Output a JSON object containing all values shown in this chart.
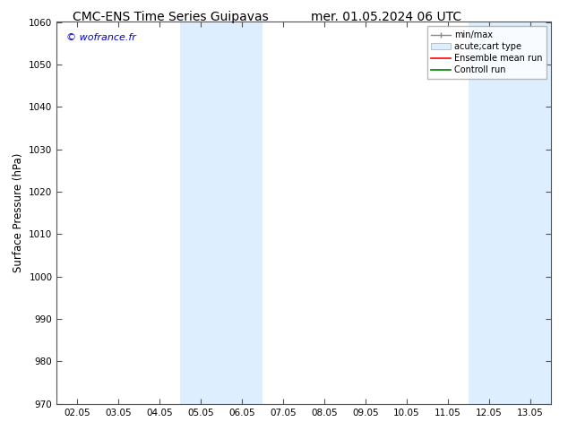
{
  "title_left": "CMC-ENS Time Series Guipavas",
  "title_right": "mer. 01.05.2024 06 UTC",
  "ylabel": "Surface Pressure (hPa)",
  "ylim": [
    970,
    1060
  ],
  "yticks": [
    970,
    980,
    990,
    1000,
    1010,
    1020,
    1030,
    1040,
    1050,
    1060
  ],
  "xtick_labels": [
    "02.05",
    "03.05",
    "04.05",
    "05.05",
    "06.05",
    "07.05",
    "08.05",
    "09.05",
    "10.05",
    "11.05",
    "12.05",
    "13.05"
  ],
  "xtick_values": [
    0,
    1,
    2,
    3,
    4,
    5,
    6,
    7,
    8,
    9,
    10,
    11
  ],
  "xlim": [
    -0.5,
    11.5
  ],
  "shaded_bands": [
    {
      "x_start": 2.5,
      "x_end": 3.5,
      "color": "#ddeeff"
    },
    {
      "x_start": 3.5,
      "x_end": 4.5,
      "color": "#ddeeff"
    },
    {
      "x_start": 9.5,
      "x_end": 10.5,
      "color": "#ddeeff"
    },
    {
      "x_start": 10.5,
      "x_end": 11.5,
      "color": "#ddeeff"
    }
  ],
  "watermark": "© wofrance.fr",
  "watermark_color": "#0000cc",
  "bg_color": "#ffffff",
  "tick_color": "#555555",
  "spine_color": "#555555",
  "figsize": [
    6.34,
    4.9
  ],
  "dpi": 100,
  "font_size_title": 10,
  "font_size_ticks": 7.5,
  "font_size_ylabel": 8.5,
  "font_size_legend": 7,
  "font_size_watermark": 8
}
